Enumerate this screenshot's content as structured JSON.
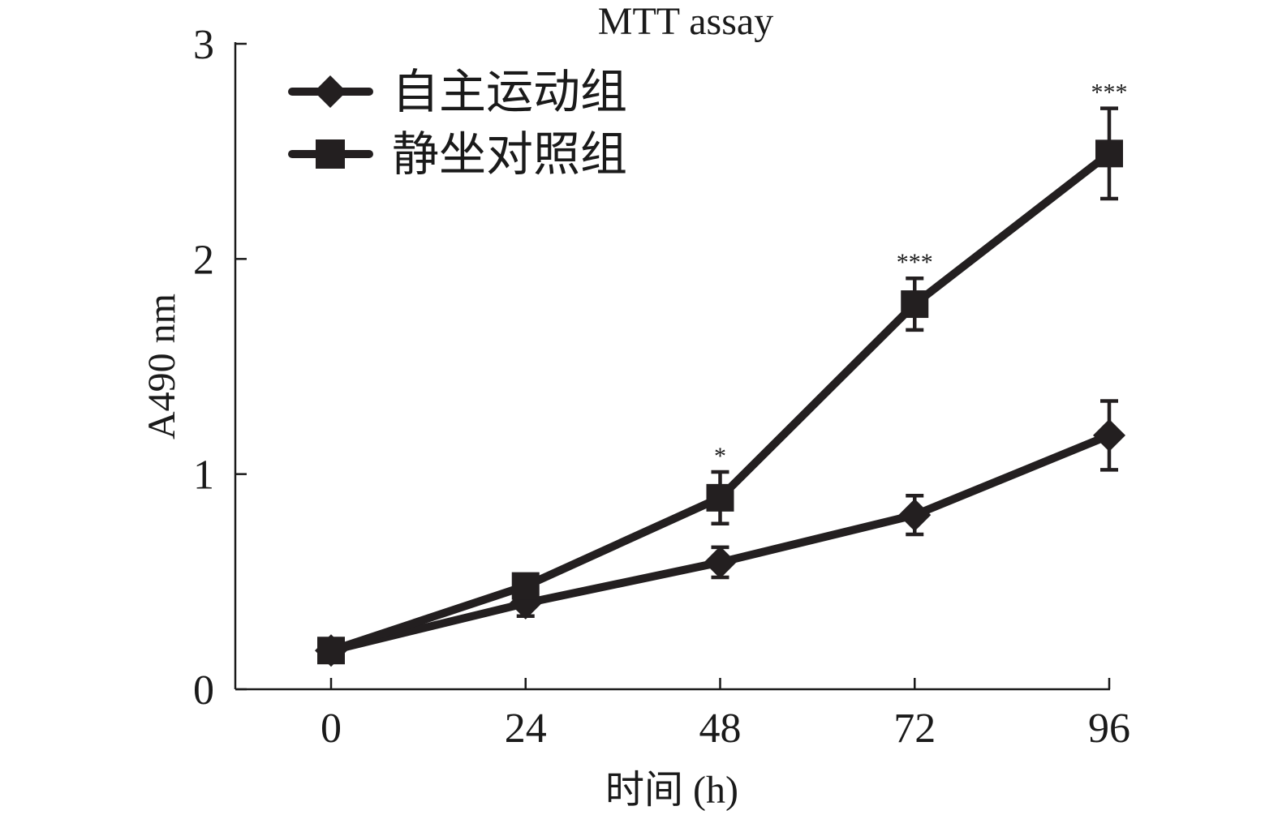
{
  "chart_data": {
    "type": "line",
    "title": "MTT assay",
    "xlabel": "时间 (h)",
    "ylabel": "A490 nm",
    "x": [
      0,
      24,
      48,
      72,
      96
    ],
    "x_tick_labels": [
      "0",
      "24",
      "48",
      "72",
      "96"
    ],
    "y_ticks": [
      0,
      1,
      2,
      3
    ],
    "y_tick_labels": [
      "0",
      "1",
      "2",
      "3"
    ],
    "ylim": [
      0,
      3
    ],
    "legend_position": "top-left",
    "grid": false,
    "series": [
      {
        "name": "自主运动组",
        "marker": "diamond",
        "values": [
          0.18,
          0.4,
          0.59,
          0.81,
          1.18
        ],
        "errors": [
          0.03,
          0.06,
          0.07,
          0.09,
          0.16
        ]
      },
      {
        "name": "静坐对照组",
        "marker": "square",
        "values": [
          0.18,
          0.48,
          0.89,
          1.79,
          2.49
        ],
        "errors": [
          0.03,
          0.04,
          0.12,
          0.12,
          0.21
        ]
      }
    ],
    "annotations": [
      {
        "x": 48,
        "text": "*"
      },
      {
        "x": 72,
        "text": "***"
      },
      {
        "x": 96,
        "text": "***"
      }
    ]
  }
}
